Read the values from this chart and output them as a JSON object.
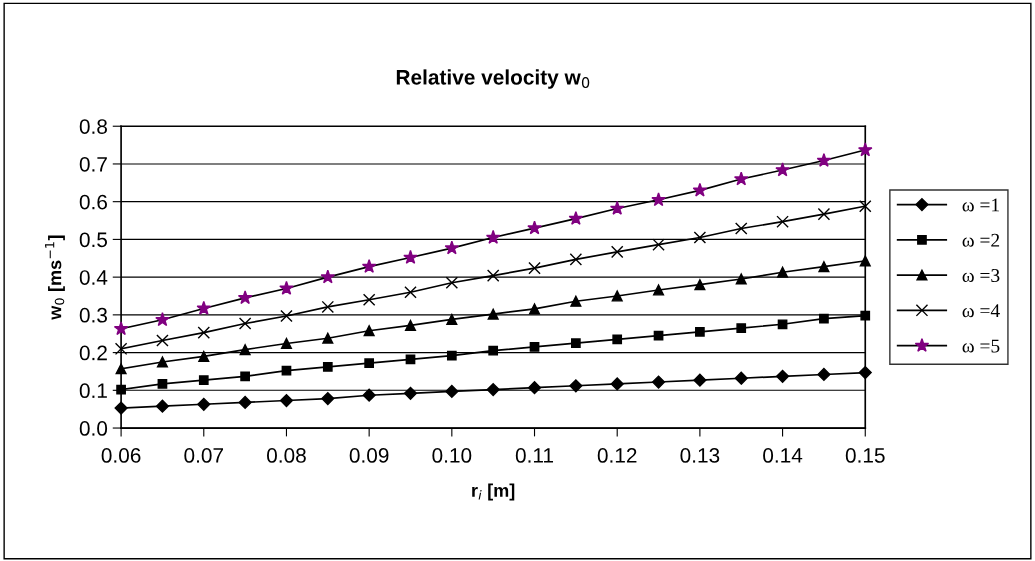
{
  "chart_data": {
    "type": "line",
    "title": "Relative velocity w$_{0}$",
    "xlabel": "r$_{i}$ [m]",
    "ylabel": "w$_{0}$ [ms$^{−1}$]",
    "x": [
      0.06,
      0.065,
      0.07,
      0.075,
      0.08,
      0.085,
      0.09,
      0.095,
      0.1,
      0.105,
      0.11,
      0.115,
      0.12,
      0.125,
      0.13,
      0.135,
      0.14,
      0.145,
      0.15
    ],
    "series": [
      {
        "name": "ω =1",
        "color": "#000000",
        "marker": "diamond",
        "values": [
          0.053,
          0.058,
          0.063,
          0.068,
          0.073,
          0.078,
          0.087,
          0.092,
          0.097,
          0.102,
          0.107,
          0.112,
          0.117,
          0.122,
          0.127,
          0.132,
          0.137,
          0.142,
          0.147
        ]
      },
      {
        "name": "ω =2",
        "color": "#000000",
        "marker": "square",
        "values": [
          0.102,
          0.117,
          0.127,
          0.137,
          0.152,
          0.162,
          0.172,
          0.182,
          0.192,
          0.205,
          0.215,
          0.225,
          0.235,
          0.245,
          0.255,
          0.265,
          0.275,
          0.29,
          0.298
        ]
      },
      {
        "name": "ω =3",
        "color": "#000000",
        "marker": "triangle",
        "values": [
          0.157,
          0.175,
          0.19,
          0.208,
          0.224,
          0.238,
          0.258,
          0.272,
          0.288,
          0.302,
          0.316,
          0.336,
          0.35,
          0.366,
          0.38,
          0.395,
          0.413,
          0.428,
          0.443
        ]
      },
      {
        "name": "ω =4",
        "color": "#000000",
        "marker": "cross",
        "values": [
          0.21,
          0.232,
          0.253,
          0.277,
          0.297,
          0.321,
          0.34,
          0.36,
          0.385,
          0.404,
          0.424,
          0.447,
          0.467,
          0.486,
          0.505,
          0.529,
          0.547,
          0.567,
          0.588
        ]
      },
      {
        "name": "ω =5",
        "color": "#800080",
        "marker": "star",
        "values": [
          0.263,
          0.287,
          0.317,
          0.345,
          0.37,
          0.4,
          0.428,
          0.452,
          0.477,
          0.505,
          0.53,
          0.555,
          0.582,
          0.605,
          0.63,
          0.66,
          0.684,
          0.709,
          0.737
        ]
      }
    ],
    "xlim": [
      0.06,
      0.15
    ],
    "xticks": [
      0.06,
      0.07,
      0.08,
      0.09,
      {
        "value": 0.1,
        "label": "0.10"
      },
      0.11,
      0.12,
      0.13,
      0.14,
      0.15
    ],
    "ylim": [
      0,
      0.8
    ],
    "yticks": [
      {
        "value": 0,
        "label": "0.0"
      },
      0.1,
      0.2,
      0.3,
      0.4,
      0.5,
      0.6,
      0.7,
      0.8
    ],
    "grid": "y",
    "legend": "right",
    "line_style": "solid"
  }
}
